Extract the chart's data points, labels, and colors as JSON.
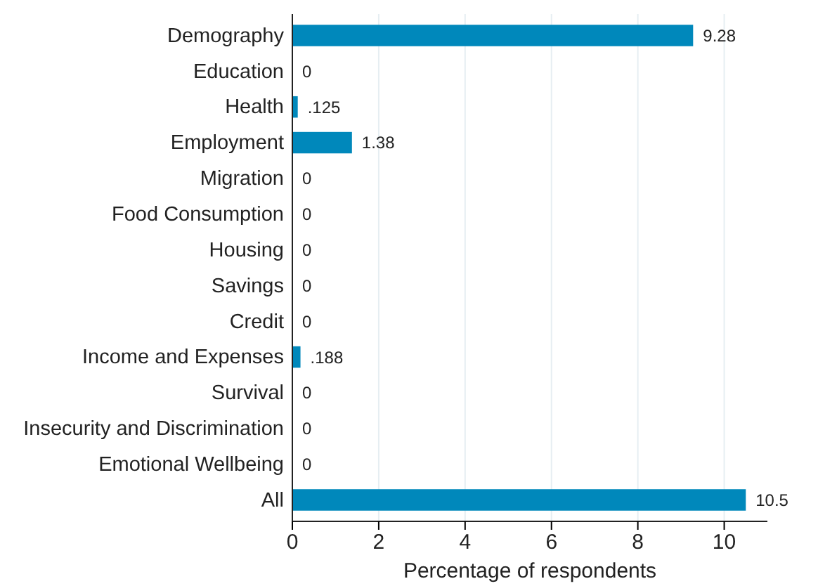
{
  "chart_data": {
    "type": "bar",
    "orientation": "horizontal",
    "xlabel": "Percentage of respondents",
    "categories": [
      "Demography",
      "Education",
      "Health",
      "Employment",
      "Migration",
      "Food Consumption",
      "Housing",
      "Savings",
      "Credit",
      "Income and Expenses",
      "Survival",
      "Insecurity and Discrimination",
      "Emotional Wellbeing",
      "All"
    ],
    "values": [
      9.28,
      0,
      0.125,
      1.38,
      0,
      0,
      0,
      0,
      0,
      0.188,
      0,
      0,
      0,
      10.5
    ],
    "value_labels": [
      "9.28",
      "0",
      ".125",
      "1.38",
      "0",
      "0",
      "0",
      "0",
      "0",
      ".188",
      "0",
      "0",
      "0",
      "10.5"
    ],
    "color": "#0088bb",
    "xlim": [
      0,
      11
    ],
    "xticks": [
      0,
      2,
      4,
      6,
      8,
      10
    ],
    "grid": "x"
  }
}
